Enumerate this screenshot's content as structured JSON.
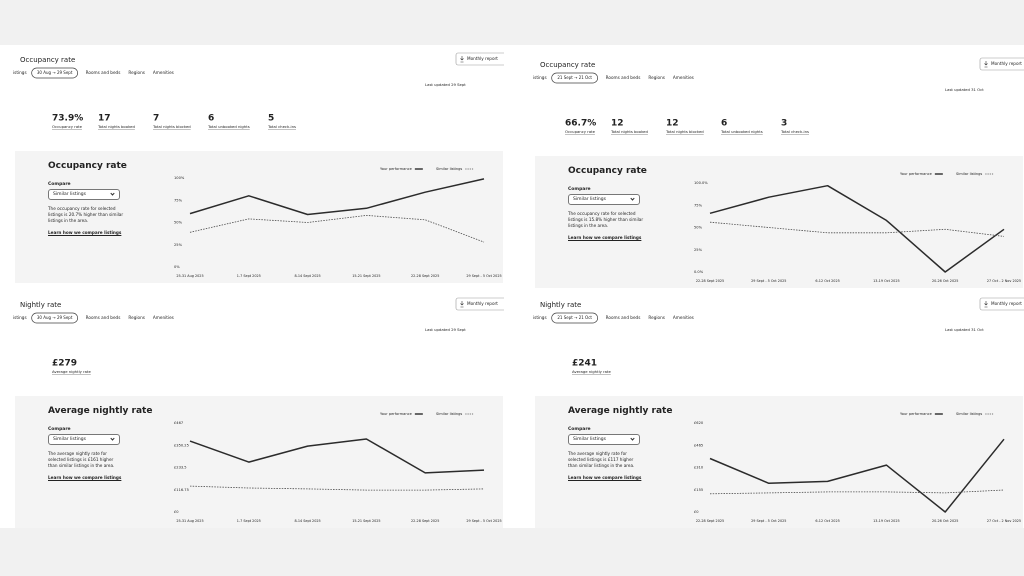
{
  "panels": [
    {
      "title": "Occupancy rate",
      "filters": {
        "cut": "istings",
        "range": "30 Aug → 29 Sept",
        "items": [
          "Rooms and beds",
          "Regions",
          "Amenities"
        ]
      },
      "button": "Monthly report",
      "updated": "Last updated 29 Sept",
      "stats": [
        {
          "value": "73.9%",
          "label": "Occupancy rate"
        },
        {
          "value": "17",
          "label": "Total nights booked"
        },
        {
          "value": "7",
          "label": "Total nights blocked"
        },
        {
          "value": "6",
          "label": "Total unbooked nights"
        },
        {
          "value": "5",
          "label": "Total check-ins"
        }
      ],
      "card": {
        "title": "Occupancy rate",
        "compare": "Compare",
        "select": "Similar listings",
        "description": "The occupancy rate for selected listings is 20.7% higher than similar listings in the area.",
        "link": "Learn how we compare listings"
      }
    },
    {
      "title": "Occupancy rate",
      "filters": {
        "cut": "istings",
        "range": "21 Sept → 21 Oct",
        "items": [
          "Rooms and beds",
          "Regions",
          "Amenities"
        ]
      },
      "button": "Monthly report",
      "updated": "Last updated 31 Oct",
      "stats": [
        {
          "value": "66.7%",
          "label": "Occupancy rate"
        },
        {
          "value": "12",
          "label": "Total nights booked"
        },
        {
          "value": "12",
          "label": "Total nights blocked"
        },
        {
          "value": "6",
          "label": "Total unbooked nights"
        },
        {
          "value": "3",
          "label": "Total check-ins"
        }
      ],
      "card": {
        "title": "Occupancy rate",
        "compare": "Compare",
        "select": "Similar listings",
        "description": "The occupancy rate for selected listings is 15.8% higher than similar listings in the area.",
        "link": "Learn how we compare listings"
      }
    },
    {
      "title": "Nightly rate",
      "filters": {
        "cut": "istings",
        "range": "30 Aug → 29 Sept",
        "items": [
          "Rooms and beds",
          "Regions",
          "Amenities"
        ]
      },
      "button": "Monthly report",
      "updated": "Last updated 29 Sept",
      "stats": [
        {
          "value": "£279",
          "label": "Average nightly rate"
        }
      ],
      "card": {
        "title": "Average nightly rate",
        "compare": "Compare",
        "select": "Similar listings",
        "description": "The average nightly rate for selected listings is £161 higher than similar listings in the area.",
        "link": "Learn how we compare listings"
      }
    },
    {
      "title": "Nightly rate",
      "filters": {
        "cut": "istings",
        "range": "21 Sept → 21 Oct",
        "items": [
          "Rooms and beds",
          "Regions",
          "Amenities"
        ]
      },
      "button": "Monthly report",
      "updated": "Last updated 31 Oct",
      "stats": [
        {
          "value": "£241",
          "label": "Average nightly rate"
        }
      ],
      "card": {
        "title": "Average nightly rate",
        "compare": "Compare",
        "select": "Similar listings",
        "description": "The average nightly rate for selected listings is £117 higher than similar listings in the area.",
        "link": "Learn how we compare listings"
      }
    }
  ],
  "chart_data": [
    {
      "type": "line",
      "grid": false,
      "categories": [
        "25-31 Aug 2025",
        "1-7 Sept 2025",
        "8-14 Sept 2025",
        "15-21 Sept 2025",
        "22-28 Sept 2025",
        "29 Sept - 5 Oct 2025"
      ],
      "ylim": [
        0,
        100
      ],
      "yticks": [
        {
          "value": 0,
          "label": "0%"
        },
        {
          "value": 25,
          "label": "25%"
        },
        {
          "value": 50,
          "label": "50%"
        },
        {
          "value": 75,
          "label": "75%"
        },
        {
          "value": 100,
          "label": "100%"
        }
      ],
      "series": [
        {
          "name": "Your performance",
          "color": "#2b2b2b",
          "style": "solid",
          "values": [
            60,
            80,
            59,
            66,
            84,
            99
          ]
        },
        {
          "name": "Similar listings",
          "color": "#4a4a4a",
          "style": "dashed",
          "values": [
            39,
            54,
            50,
            58,
            53,
            28
          ]
        }
      ]
    },
    {
      "type": "line",
      "grid": false,
      "categories": [
        "22-28 Sept 2025",
        "29 Sept - 5 Oct 2025",
        "6-12 Oct 2025",
        "13-19 Oct 2025",
        "20-26 Oct 2025",
        "27 Oct - 2 Nov 2025"
      ],
      "ylim": [
        0,
        100
      ],
      "yticks": [
        {
          "value": 0,
          "label": "0.0%"
        },
        {
          "value": 25,
          "label": "25%"
        },
        {
          "value": 50,
          "label": "50%"
        },
        {
          "value": 75,
          "label": "75%"
        },
        {
          "value": 100,
          "label": "100.0%"
        }
      ],
      "series": [
        {
          "name": "Your performance",
          "color": "#2b2b2b",
          "style": "solid",
          "values": [
            66,
            84,
            97,
            58,
            0,
            48
          ]
        },
        {
          "name": "Similar listings",
          "color": "#4a4a4a",
          "style": "dashed",
          "values": [
            56,
            50,
            44,
            44,
            48,
            40
          ]
        }
      ]
    },
    {
      "type": "line",
      "grid": false,
      "categories": [
        "25-31 Aug 2025",
        "1-7 Sept 2025",
        "8-14 Sept 2025",
        "15-21 Sept 2025",
        "22-28 Sept 2025",
        "29 Sept - 5 Oct 2025"
      ],
      "ylim": [
        0,
        467
      ],
      "yticks": [
        {
          "value": 0,
          "label": "£0"
        },
        {
          "value": 116.75,
          "label": "£116.75"
        },
        {
          "value": 233.5,
          "label": "£233.5"
        },
        {
          "value": 350.25,
          "label": "£350.25"
        },
        {
          "value": 467,
          "label": "£467"
        }
      ],
      "series": [
        {
          "name": "Your performance",
          "color": "#2b2b2b",
          "style": "solid",
          "values": [
            372,
            262,
            346,
            383,
            205,
            220
          ]
        },
        {
          "name": "Similar listings",
          "color": "#4a4a4a",
          "style": "dashed",
          "values": [
            136,
            126,
            121,
            115,
            115,
            121
          ]
        }
      ]
    },
    {
      "type": "line",
      "grid": false,
      "categories": [
        "22-28 Sept 2025",
        "29 Sept - 5 Oct 2025",
        "6-12 Oct 2025",
        "13-19 Oct 2025",
        "20-26 Oct 2025",
        "27 Oct - 2 Nov 2025"
      ],
      "ylim": [
        0,
        620
      ],
      "yticks": [
        {
          "value": 0,
          "label": "£0"
        },
        {
          "value": 155,
          "label": "£155"
        },
        {
          "value": 310,
          "label": "£310"
        },
        {
          "value": 465,
          "label": "£465"
        },
        {
          "value": 620,
          "label": "£620"
        }
      ],
      "series": [
        {
          "name": "Your performance",
          "color": "#2b2b2b",
          "style": "solid",
          "values": [
            373,
            200,
            213,
            327,
            0,
            507
          ]
        },
        {
          "name": "Similar listings",
          "color": "#4a4a4a",
          "style": "dashed",
          "values": [
            127,
            133,
            140,
            140,
            133,
            153
          ]
        }
      ]
    }
  ]
}
